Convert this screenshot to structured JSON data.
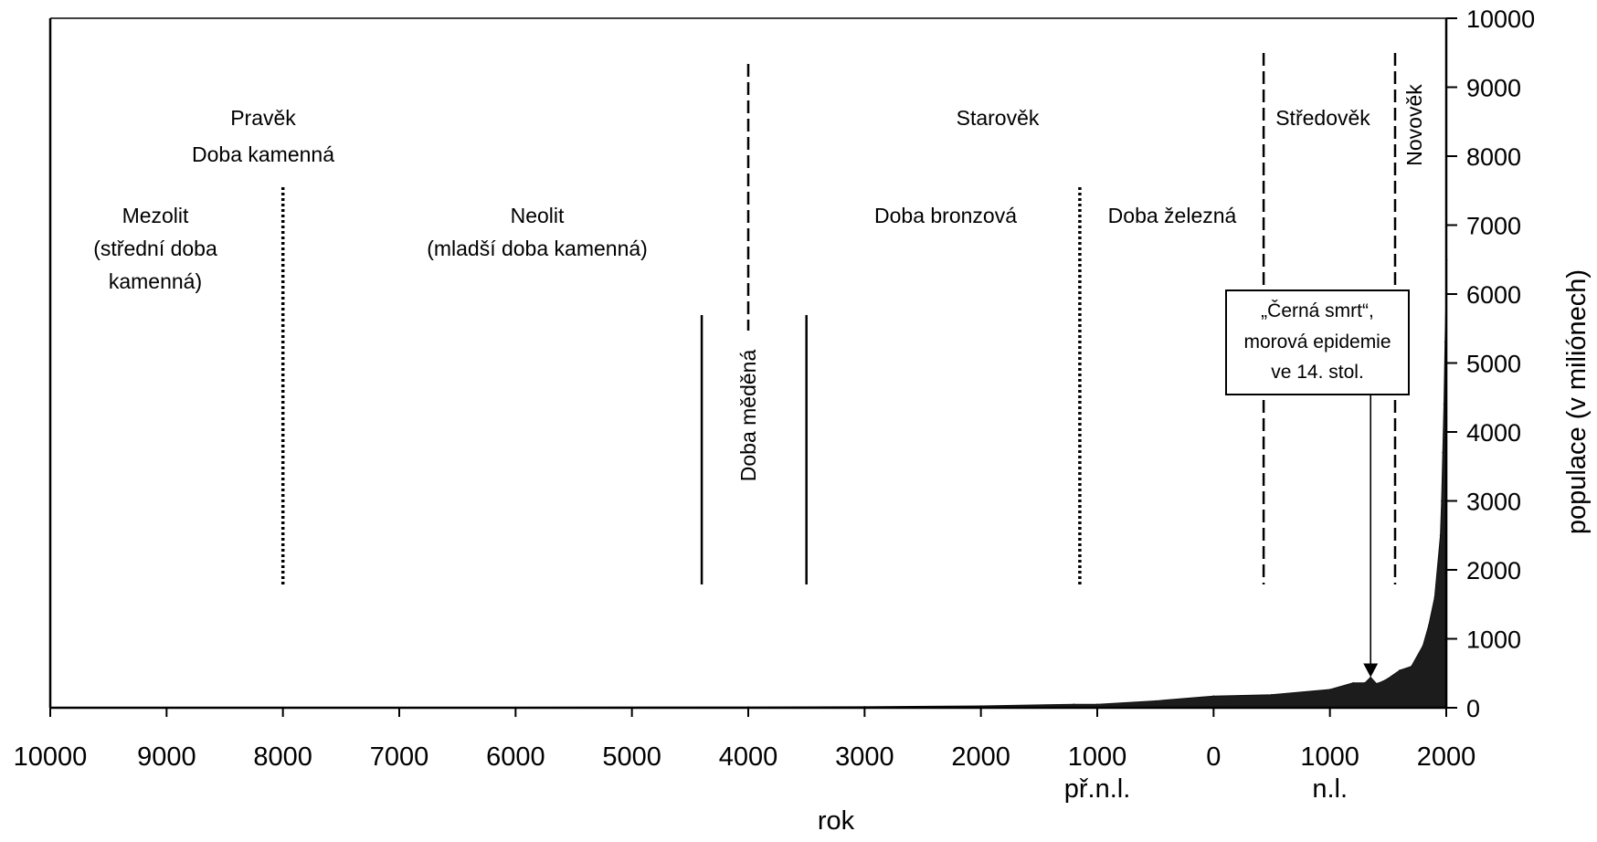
{
  "chart_data": {
    "type": "area",
    "xlabel": "rok",
    "ylabel": "populace (v miliónech)",
    "xlim": [
      -10000,
      2000
    ],
    "ylim": [
      0,
      10000
    ],
    "x_ticks": [
      {
        "value": -10000,
        "label": "10000"
      },
      {
        "value": -9000,
        "label": "9000"
      },
      {
        "value": -8000,
        "label": "8000"
      },
      {
        "value": -7000,
        "label": "7000"
      },
      {
        "value": -6000,
        "label": "6000"
      },
      {
        "value": -5000,
        "label": "5000"
      },
      {
        "value": -4000,
        "label": "4000"
      },
      {
        "value": -3000,
        "label": "3000"
      },
      {
        "value": -2000,
        "label": "2000"
      },
      {
        "value": -1000,
        "label": "1000"
      },
      {
        "value": 0,
        "label": "0"
      },
      {
        "value": 1000,
        "label": "1000"
      },
      {
        "value": 2000,
        "label": "2000"
      }
    ],
    "x_sublabels": [
      {
        "value": -1000,
        "label": "př.n.l."
      },
      {
        "value": 1000,
        "label": "n.l."
      }
    ],
    "y_ticks": [
      0,
      1000,
      2000,
      3000,
      4000,
      5000,
      6000,
      7000,
      8000,
      9000,
      10000
    ],
    "series": [
      {
        "x": [
          -10000,
          -8000,
          -6000,
          -4000,
          -3000,
          -2000,
          -1200,
          -1000,
          -500,
          0,
          500,
          1000,
          1200,
          1300,
          1350,
          1400,
          1450,
          1500,
          1600,
          1700,
          1800,
          1850,
          1900,
          1950,
          1960,
          1970,
          1980,
          1990,
          2000,
          2005
        ],
        "y": [
          4,
          5,
          7,
          10,
          14,
          27,
          50,
          50,
          100,
          170,
          190,
          265,
          360,
          360,
          443,
          350,
          380,
          425,
          545,
          600,
          900,
          1200,
          1600,
          2500,
          3000,
          3700,
          4400,
          5300,
          6100,
          6500
        ]
      }
    ],
    "era_dividers": [
      {
        "x": -8000,
        "style": "dotted"
      },
      {
        "x": -4400,
        "style": "solid"
      },
      {
        "x": -4000,
        "style": "dashed"
      },
      {
        "x": -3500,
        "style": "solid"
      },
      {
        "x": -1150,
        "style": "dotted"
      },
      {
        "x": 430,
        "style": "dashed"
      },
      {
        "x": 1560,
        "style": "dashed"
      }
    ],
    "annotations": {
      "pravek": "Pravěk",
      "doba_kamenna": "Doba kamenná",
      "mezolit": [
        "Mezolit",
        "(střední doba",
        "kamenná)"
      ],
      "neolit": [
        "Neolit",
        "(mladší doba kamenná)"
      ],
      "doba_medena": "Doba měděná",
      "starovek": "Starověk",
      "doba_bronzova": "Doba bronzová",
      "doba_zelezna": "Doba  železná",
      "stredovek": "Středověk",
      "novovek": "Novověk",
      "cerna_smrt": [
        "„Černá smrt“,",
        "morová epidemie",
        "ve 14. stol."
      ]
    },
    "cerna_smrt_point": {
      "x": 1350,
      "y": 443
    }
  }
}
